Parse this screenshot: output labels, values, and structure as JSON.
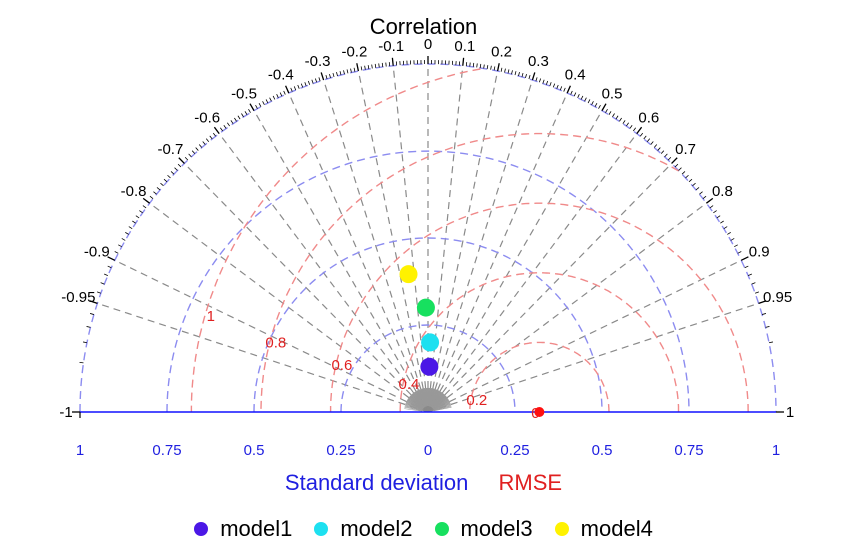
{
  "chart_data": {
    "type": "scatter",
    "subtype": "taylor-diagram-full",
    "title": "Correlation",
    "xlabel": "Standard deviation",
    "xlabel_secondary": "RMSE",
    "std_ticks": [
      "1",
      "0.75",
      "0.5",
      "0.25",
      "0",
      "0.25",
      "0.5",
      "0.75",
      "1"
    ],
    "std_range": [
      0,
      1
    ],
    "correlation_ticks": [
      -1,
      -0.95,
      -0.9,
      -0.8,
      -0.7,
      -0.6,
      -0.5,
      -0.4,
      -0.3,
      -0.2,
      -0.1,
      0,
      0.1,
      0.2,
      0.3,
      0.4,
      0.5,
      0.6,
      0.7,
      0.8,
      0.9,
      0.95,
      1
    ],
    "std_arcs": [
      0.25,
      0.5,
      0.75,
      1
    ],
    "rmse_arcs": [
      0.2,
      0.4,
      0.6,
      0.8,
      1
    ],
    "rmse_labels": [
      "0.2",
      "0.4",
      "0.6",
      "0.8",
      "1"
    ],
    "rmse_zero_label": "0",
    "reference": {
      "std": 0.32,
      "color": "#ff1010"
    },
    "series": [
      {
        "name": "model1",
        "color": "#4b17e6",
        "std": 0.13,
        "correlation": 0.03
      },
      {
        "name": "model2",
        "color": "#1de0f0",
        "std": 0.2,
        "correlation": 0.03
      },
      {
        "name": "model3",
        "color": "#17e05f",
        "std": 0.3,
        "correlation": -0.02
      },
      {
        "name": "model4",
        "color": "#fff200",
        "std": 0.4,
        "correlation": -0.14
      }
    ],
    "colors": {
      "std_arc": "#8c8cf0",
      "rmse_arc": "#f08a8a",
      "corr_ray": "#8a8a8a",
      "baseline": "#1010ff",
      "std_text": "#1f1fe0",
      "rmse_text": "#e02020"
    },
    "legend_position": "bottom"
  }
}
